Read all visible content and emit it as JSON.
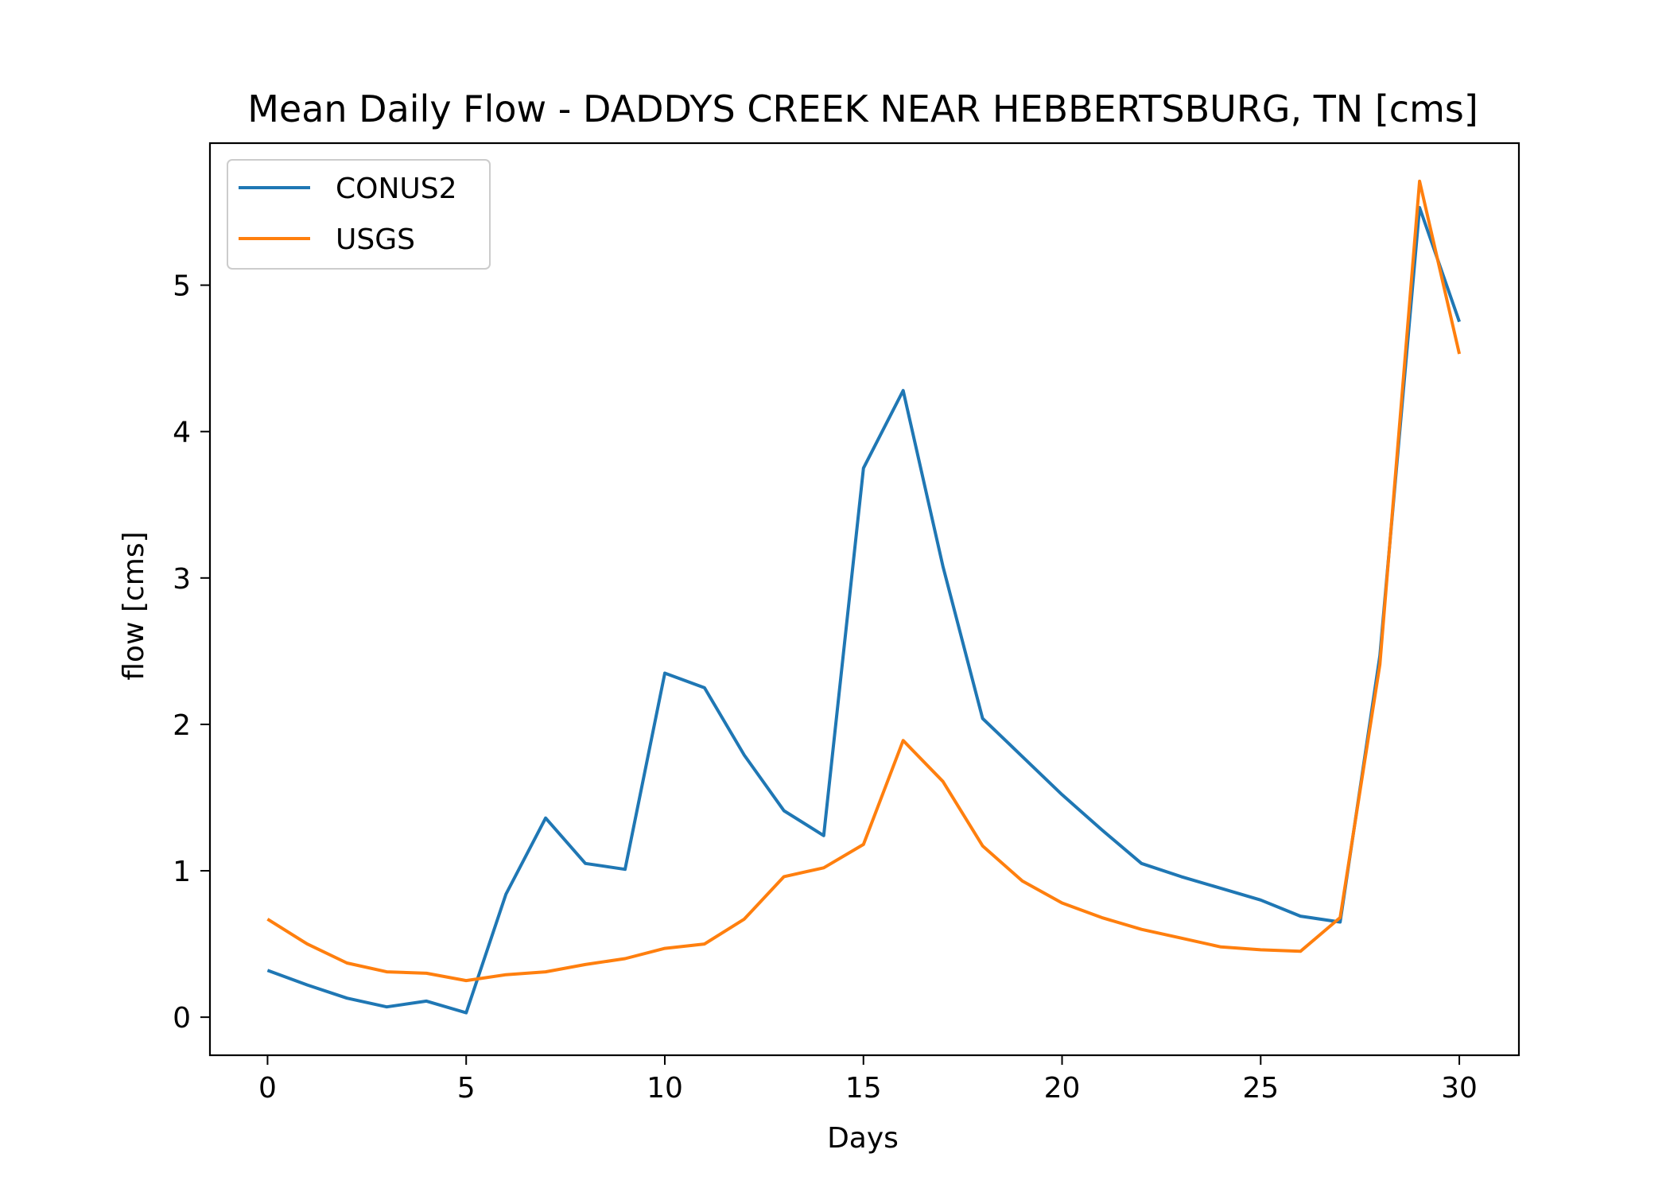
{
  "chart_data": {
    "type": "line",
    "title": "Mean Daily Flow - DADDYS CREEK NEAR HEBBERTSBURG, TN [cms]",
    "xlabel": "Days",
    "ylabel": "flow [cms]",
    "xlim": [
      -1.45,
      31.5
    ],
    "ylim": [
      -0.26,
      5.97
    ],
    "xticks": [
      0,
      5,
      10,
      15,
      20,
      25,
      30
    ],
    "yticks": [
      0,
      1,
      2,
      3,
      4,
      5
    ],
    "grid": false,
    "legend_position": "upper-left",
    "x": [
      0,
      1,
      2,
      3,
      4,
      5,
      6,
      7,
      8,
      9,
      10,
      11,
      12,
      13,
      14,
      15,
      16,
      17,
      18,
      19,
      20,
      21,
      22,
      23,
      24,
      25,
      26,
      27,
      28,
      29,
      30
    ],
    "series": [
      {
        "name": "CONUS2",
        "color": "#1f77b4",
        "values": [
          0.32,
          0.22,
          0.13,
          0.07,
          0.11,
          0.03,
          0.84,
          1.36,
          1.05,
          1.01,
          2.35,
          2.25,
          1.79,
          1.41,
          1.24,
          3.75,
          4.28,
          3.08,
          2.04,
          1.78,
          1.52,
          1.28,
          1.05,
          0.96,
          0.88,
          0.8,
          0.69,
          0.65,
          2.47,
          5.53,
          4.75
        ]
      },
      {
        "name": "USGS",
        "color": "#ff7f0e",
        "values": [
          0.67,
          0.5,
          0.37,
          0.31,
          0.3,
          0.25,
          0.29,
          0.31,
          0.36,
          0.4,
          0.47,
          0.5,
          0.67,
          0.96,
          1.02,
          1.18,
          1.89,
          1.61,
          1.17,
          0.93,
          0.78,
          0.68,
          0.6,
          0.54,
          0.48,
          0.46,
          0.45,
          0.68,
          2.41,
          5.71,
          4.53
        ]
      }
    ]
  }
}
